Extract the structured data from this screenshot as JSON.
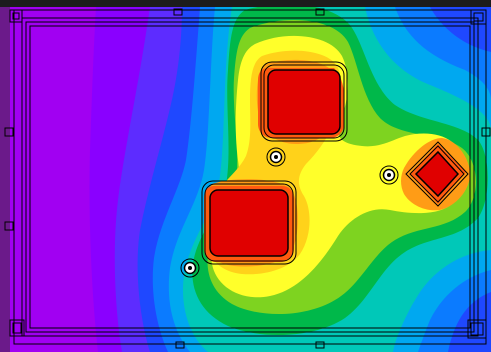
{
  "view": {
    "kind": "thermal-contour-map",
    "visible_text": [],
    "palette": {
      "level_0": "#a100f2",
      "level_1": "#8a00ff",
      "level_2": "#5d2cff",
      "level_3": "#1f48ff",
      "level_4": "#0b7bff",
      "level_5": "#00a8f0",
      "level_6": "#00c8b8",
      "level_7": "#00b84a",
      "level_8": "#7ed320",
      "level_9": "#ffff2a",
      "level_10": "#ffd21a",
      "level_11": "#ff9c16",
      "level_12": "#ff5a10",
      "hotspot": "#e00000",
      "outline": "#000000",
      "topbar": "#1c1c1c"
    },
    "hotspots": [
      {
        "name": "upper-square-component",
        "shape": "rounded-square"
      },
      {
        "name": "lower-square-component",
        "shape": "rounded-square"
      },
      {
        "name": "right-diamond-component",
        "shape": "diamond"
      }
    ],
    "mounting_holes": [
      {
        "name": "center-hole"
      },
      {
        "name": "right-hole"
      },
      {
        "name": "lower-left-hole"
      }
    ]
  }
}
